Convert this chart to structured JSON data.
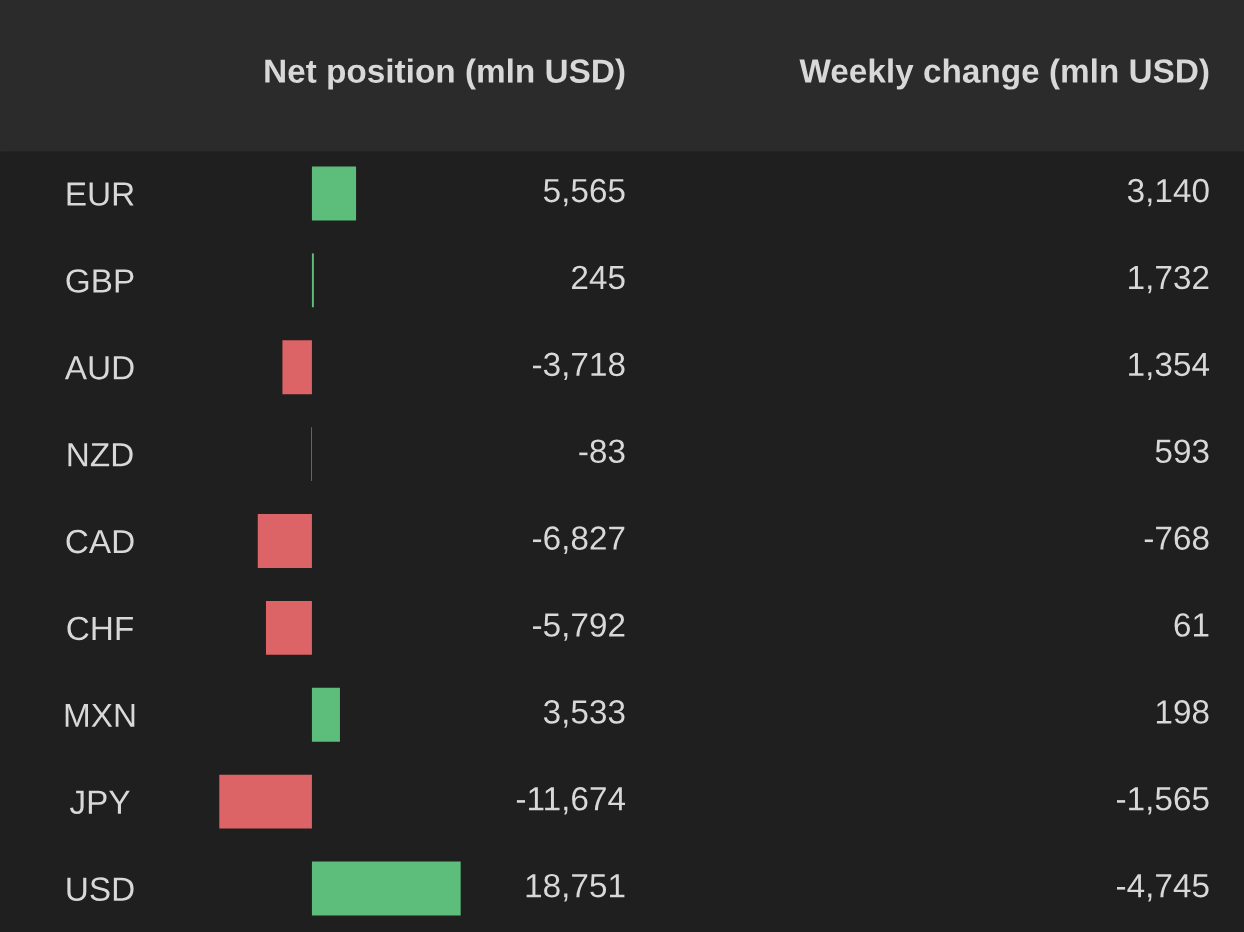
{
  "chart_data": [
    {
      "type": "bar",
      "orientation": "horizontal",
      "title": "Net position (mln USD)",
      "categories": [
        "EUR",
        "GBP",
        "AUD",
        "NZD",
        "CAD",
        "CHF",
        "MXN",
        "JPY",
        "USD"
      ],
      "values": [
        5565,
        245,
        -3718,
        -83,
        -6827,
        -5792,
        3533,
        -11674,
        18751
      ],
      "colors": [
        "#5dbd7a",
        "#5dbd7a",
        "#dd6466",
        "#dd6466",
        "#dd6466",
        "#dd6466",
        "#5dbd7a",
        "#dd6466",
        "#5dbd7a"
      ],
      "value_labels": [
        "5,565",
        "245",
        "-3,718",
        "-83",
        "-6,827",
        "-5,792",
        "3,533",
        "-11,674",
        "18,751"
      ]
    },
    {
      "type": "other",
      "title": "Weekly change (mln USD)",
      "values": [
        3140,
        1732,
        1354,
        593,
        -768,
        61,
        198,
        -1565,
        -4745
      ],
      "value_labels": [
        "3,140",
        "1,732",
        "1,354",
        "593",
        "-768",
        "61",
        "198",
        "-1,565",
        "-4,745"
      ]
    }
  ]
}
